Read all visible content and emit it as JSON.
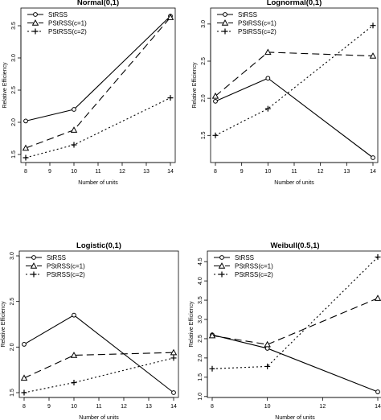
{
  "chart_data": [
    {
      "type": "line",
      "title": "Normal(0,1)",
      "xlabel": "Number of units",
      "ylabel": "Relative Efficiency",
      "x": [
        8,
        10,
        14
      ],
      "xticks": [
        8,
        9,
        10,
        11,
        12,
        13,
        14
      ],
      "xlim": [
        8,
        14
      ],
      "ylim": [
        1.45,
        3.7
      ],
      "yticks": [
        1.5,
        2.0,
        2.5,
        3.0,
        3.5
      ],
      "legend_position": "top-left",
      "series": [
        {
          "name": "StRSS",
          "values": [
            2.02,
            2.2,
            3.65
          ],
          "dash": "",
          "marker": "circle"
        },
        {
          "name": "PStRSS(c=1)",
          "values": [
            1.6,
            1.88,
            3.63
          ],
          "dash": "9,5",
          "marker": "triangle"
        },
        {
          "name": "PStRSS(c=2)",
          "values": [
            1.45,
            1.65,
            2.38
          ],
          "dash": "2,3",
          "marker": "plus"
        }
      ]
    },
    {
      "type": "line",
      "title": "Lognormal(0,1)",
      "xlabel": "Number of units",
      "ylabel": "Relative Efficiency",
      "x": [
        8,
        10,
        14
      ],
      "xticks": [
        8,
        9,
        10,
        11,
        12,
        13,
        14
      ],
      "xlim": [
        8,
        14
      ],
      "ylim": [
        1.2,
        3.15
      ],
      "yticks": [
        1.5,
        2.0,
        2.5,
        3.0
      ],
      "legend_position": "top-left",
      "series": [
        {
          "name": "StRSS",
          "values": [
            1.96,
            2.27,
            1.2
          ],
          "dash": "",
          "marker": "circle"
        },
        {
          "name": "PStRSS(c=1)",
          "values": [
            2.03,
            2.62,
            2.57
          ],
          "dash": "9,5",
          "marker": "triangle"
        },
        {
          "name": "PStRSS(c=2)",
          "values": [
            1.5,
            1.86,
            2.98
          ],
          "dash": "2,3",
          "marker": "plus"
        }
      ]
    },
    {
      "type": "line",
      "title": "Logistic(0,1)",
      "xlabel": "Number of units",
      "ylabel": "Relative Efficiency",
      "x": [
        8,
        10,
        14
      ],
      "xticks": [
        8,
        9,
        10,
        11,
        12,
        13,
        14
      ],
      "xlim": [
        8,
        14
      ],
      "ylim": [
        1.5,
        3.0
      ],
      "yticks": [
        1.5,
        2.0,
        2.5,
        3.0
      ],
      "legend_position": "top-left",
      "series": [
        {
          "name": "StRSS",
          "values": [
            2.03,
            2.35,
            1.5
          ],
          "dash": "",
          "marker": "circle"
        },
        {
          "name": "PStRSS(c=1)",
          "values": [
            1.66,
            1.91,
            1.94
          ],
          "dash": "9,5",
          "marker": "triangle"
        },
        {
          "name": "PStRSS(c=2)",
          "values": [
            1.5,
            1.61,
            1.88
          ],
          "dash": "2,3",
          "marker": "plus"
        }
      ]
    },
    {
      "type": "line",
      "title": "Weibull(0.5,1)",
      "xlabel": "Number of units",
      "ylabel": "Relative Efficiency",
      "x": [
        8,
        10,
        14
      ],
      "xticks": [
        8,
        10,
        12,
        14
      ],
      "xlim": [
        8,
        14
      ],
      "ylim": [
        1.1,
        4.65
      ],
      "yticks": [
        1.0,
        1.5,
        2.0,
        2.5,
        3.0,
        3.5,
        4.0,
        4.5
      ],
      "legend_position": "top-left",
      "series": [
        {
          "name": "StRSS",
          "values": [
            2.6,
            2.25,
            1.12
          ],
          "dash": "",
          "marker": "circle"
        },
        {
          "name": "PStRSS(c=1)",
          "values": [
            2.58,
            2.35,
            3.55
          ],
          "dash": "9,5",
          "marker": "triangle"
        },
        {
          "name": "PStRSS(c=2)",
          "values": [
            1.72,
            1.78,
            4.62
          ],
          "dash": "2,3",
          "marker": "plus"
        }
      ]
    }
  ]
}
